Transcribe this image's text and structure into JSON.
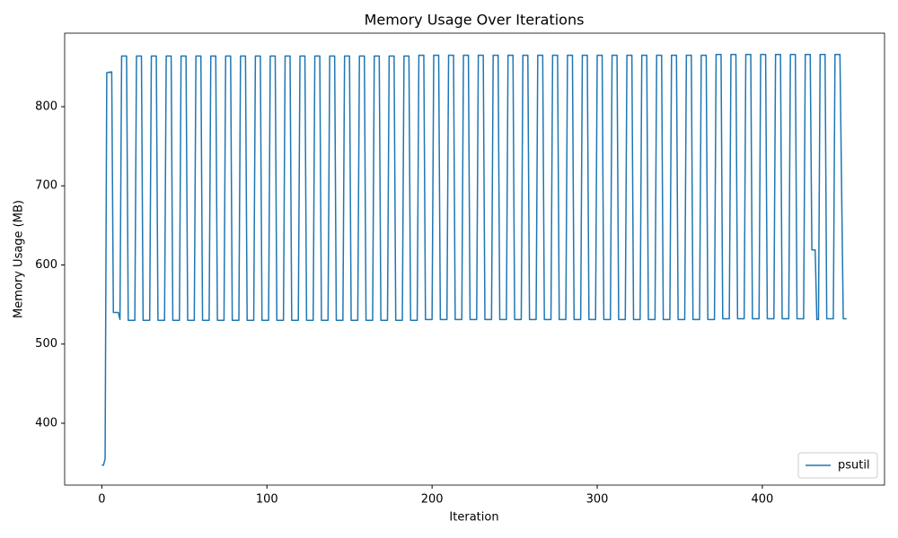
{
  "chart_data": {
    "type": "line",
    "title": "Memory Usage Over Iterations",
    "x_label": "Iteration",
    "y_label": "Memory Usage (MB)",
    "x": [
      0,
      1,
      2,
      3,
      6,
      7,
      10,
      11,
      12,
      15,
      16,
      20,
      21,
      24,
      25,
      29,
      30,
      33,
      34,
      38,
      39,
      42,
      43,
      47,
      48,
      51,
      52,
      56,
      57,
      60,
      61,
      65,
      66,
      69,
      70,
      74,
      75,
      78,
      79,
      83,
      84,
      87,
      88,
      92,
      93,
      96,
      97,
      101,
      102,
      105,
      106,
      110,
      111,
      114,
      115,
      119,
      120,
      123,
      124,
      128,
      129,
      132,
      133,
      137,
      138,
      141,
      142,
      146,
      147,
      150,
      151,
      155,
      156,
      159,
      160,
      164,
      165,
      168,
      169,
      173,
      174,
      177,
      178,
      182,
      183,
      186,
      187,
      191,
      192,
      195,
      196,
      200,
      201,
      204,
      205,
      209,
      210,
      213,
      214,
      218,
      219,
      222,
      223,
      227,
      228,
      231,
      232,
      236,
      237,
      240,
      241,
      245,
      246,
      249,
      250,
      254,
      255,
      258,
      259,
      263,
      264,
      267,
      268,
      272,
      273,
      276,
      277,
      281,
      282,
      285,
      286,
      290,
      291,
      294,
      295,
      299,
      300,
      303,
      304,
      308,
      309,
      312,
      313,
      317,
      318,
      321,
      322,
      326,
      327,
      330,
      331,
      335,
      336,
      339,
      340,
      344,
      345,
      348,
      349,
      353,
      354,
      357,
      358,
      362,
      363,
      366,
      367,
      371,
      372,
      375,
      376,
      380,
      381,
      384,
      385,
      389,
      390,
      393,
      394,
      398,
      399,
      402,
      403,
      407,
      408,
      411,
      412,
      416,
      417,
      420,
      421,
      425,
      426,
      429,
      430,
      432,
      433,
      434,
      435,
      438,
      439,
      443,
      444,
      447,
      449,
      451
    ],
    "series": [
      {
        "name": "psutil",
        "color": "#1f77b4",
        "values": [
          347,
          347,
          355,
          843,
          844,
          540,
          540,
          531,
          864,
          864,
          530,
          530,
          864,
          864,
          530,
          530,
          864,
          864,
          530,
          530,
          864,
          864,
          530,
          530,
          864,
          864,
          530,
          530,
          864,
          864,
          530,
          530,
          864,
          864,
          530,
          530,
          864,
          864,
          530,
          530,
          864,
          864,
          530,
          530,
          864,
          864,
          530,
          530,
          864,
          864,
          530,
          530,
          864,
          864,
          530,
          530,
          864,
          864,
          530,
          530,
          864,
          864,
          530,
          530,
          864,
          864,
          530,
          530,
          864,
          864,
          530,
          530,
          864,
          864,
          530,
          530,
          864,
          864,
          530,
          530,
          864,
          864,
          530,
          530,
          864,
          864,
          530,
          530,
          865,
          865,
          531,
          531,
          865,
          865,
          531,
          531,
          865,
          865,
          531,
          531,
          865,
          865,
          531,
          531,
          865,
          865,
          531,
          531,
          865,
          865,
          531,
          531,
          865,
          865,
          531,
          531,
          865,
          865,
          531,
          531,
          865,
          865,
          531,
          531,
          865,
          865,
          531,
          531,
          865,
          865,
          531,
          531,
          865,
          865,
          531,
          531,
          865,
          865,
          531,
          531,
          865,
          865,
          531,
          531,
          865,
          865,
          531,
          531,
          865,
          865,
          531,
          531,
          865,
          865,
          531,
          531,
          865,
          865,
          531,
          531,
          865,
          865,
          531,
          531,
          865,
          865,
          531,
          531,
          866,
          866,
          532,
          532,
          866,
          866,
          532,
          532,
          866,
          866,
          532,
          532,
          866,
          866,
          532,
          532,
          866,
          866,
          532,
          532,
          866,
          866,
          532,
          532,
          866,
          866,
          619,
          619,
          531,
          531,
          866,
          866,
          532,
          532,
          866,
          866,
          532,
          532
        ]
      }
    ],
    "xlim": [
      -22.5,
      474
    ],
    "ylim": [
      321.8,
      892.9
    ],
    "xticks": [
      0,
      100,
      200,
      300,
      400
    ],
    "yticks": [
      400,
      500,
      600,
      700,
      800
    ],
    "legend": "lower right"
  }
}
